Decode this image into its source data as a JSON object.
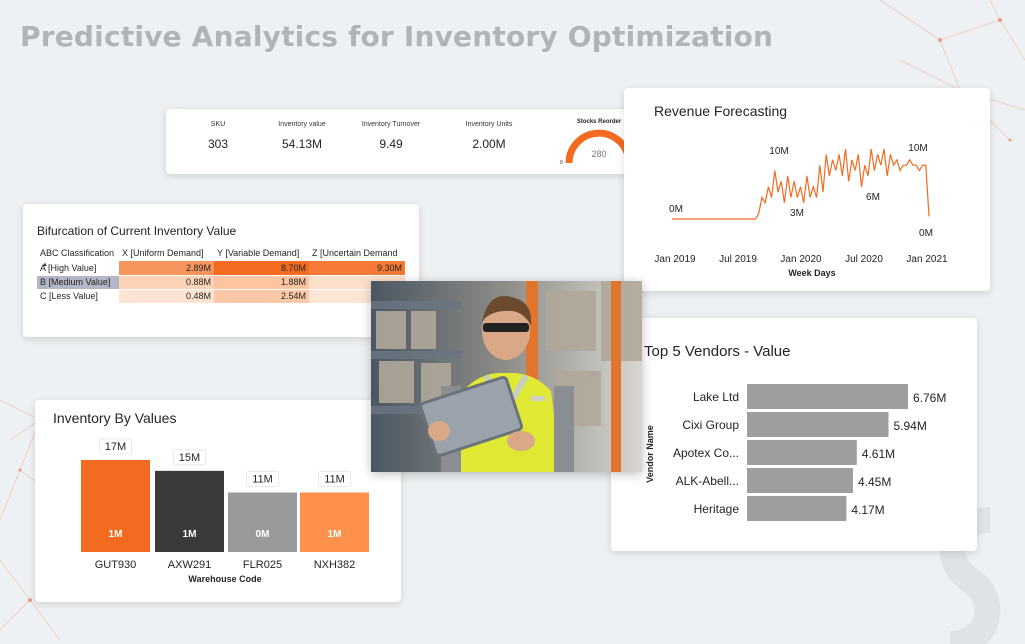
{
  "page": {
    "title": "Predictive Analytics for Inventory Optimization",
    "colors": {
      "accent": "#f26b21",
      "dark": "#3a3a3a",
      "gray": "#9a9a9a",
      "light_orange": "#ff914d"
    }
  },
  "kpis": [
    {
      "label": "SKU",
      "value": "303"
    },
    {
      "label": "Inventory value",
      "value": "54.13M"
    },
    {
      "label": "Inventory Turnover",
      "value": "9.49"
    },
    {
      "label": "Inventory Units",
      "value": "2.00M"
    }
  ],
  "stocks_reorder": {
    "label": "Stocks Reorder",
    "value": "280",
    "min": "0",
    "max": "303",
    "fraction": 0.924
  },
  "kpi_menu": "···",
  "abc_table": {
    "title": "Bifurcation of Current Inventory Value",
    "columns": [
      "ABC Classification",
      "X [Uniform Demand]",
      "Y [Variable Demand]",
      "Z [Uncertain Demand"
    ],
    "rows": [
      {
        "label": "A [High Value]",
        "values": [
          "2.89M",
          "8.70M",
          "9.30M"
        ]
      },
      {
        "label": "B [Medium Value]",
        "values": [
          "0.88M",
          "1.88M",
          ""
        ]
      },
      {
        "label": "C [Less Value]",
        "values": [
          "0.48M",
          "2.54M",
          ""
        ]
      }
    ],
    "cell_colors": [
      [
        "#f7955c",
        "#f26b21",
        "#f47a35"
      ],
      [
        "#fdd3b8",
        "#fcc4a0",
        "#fde0cc"
      ],
      [
        "#fde3d1",
        "#fcc9a8",
        "#fde6d6"
      ]
    ]
  },
  "chart_data": [
    {
      "type": "line",
      "title": "Revenue Forecasting",
      "xlabel": "Week Days",
      "x_ticks": [
        "Jan 2019",
        "Jul 2019",
        "Jan 2020",
        "Jul 2020",
        "Jan 2021"
      ],
      "data_labels": [
        "0M",
        "10M",
        "3M",
        "6M",
        "10M",
        "0M"
      ],
      "series": [
        {
          "color": "#f26b21",
          "values": [
            0,
            0,
            0,
            0,
            0,
            0,
            0,
            0,
            0,
            0,
            0,
            0,
            0,
            0,
            0,
            0,
            0,
            0,
            0,
            0,
            0,
            0,
            0,
            0,
            0,
            0,
            0,
            1,
            4,
            3,
            6,
            4,
            9,
            5,
            7,
            3,
            8,
            4,
            7,
            4,
            6,
            3,
            8,
            4,
            6,
            4,
            10,
            5,
            12,
            8,
            11,
            9,
            12,
            8,
            13,
            7,
            11,
            9,
            12,
            6,
            10,
            8,
            13,
            9,
            12,
            10,
            13,
            8,
            12,
            10,
            11,
            9,
            10,
            10,
            11,
            10,
            10,
            9,
            10,
            10,
            0.5
          ]
        }
      ],
      "ylim": [
        0,
        13
      ]
    },
    {
      "type": "bar",
      "title": "Top 5 Vendors - Value",
      "ylabel": "Vendor Name",
      "orientation": "horizontal",
      "categories": [
        "Lake Ltd",
        "Cixi Group",
        "Apotex Co...",
        "ALK-Abell...",
        "Heritage"
      ],
      "values": [
        6.76,
        5.94,
        4.61,
        4.45,
        4.17
      ],
      "value_labels": [
        "6.76M",
        "5.94M",
        "4.61M",
        "4.45M",
        "4.17M"
      ],
      "color": "#9e9e9e"
    },
    {
      "type": "bar",
      "title": "Inventory By Values",
      "xlabel": "Warehouse Code",
      "categories": [
        "GUT930",
        "AXW291",
        "FLR025",
        "NXH382"
      ],
      "values": [
        17,
        15,
        11,
        11
      ],
      "value_labels": [
        "17M",
        "15M",
        "11M",
        "11M"
      ],
      "inner_labels": [
        "1M",
        "1M",
        "0M",
        "1M"
      ],
      "colors": [
        "#f26b21",
        "#3a3a3a",
        "#9a9a9a",
        "#ff914d"
      ],
      "ylim": [
        0,
        17
      ]
    }
  ]
}
